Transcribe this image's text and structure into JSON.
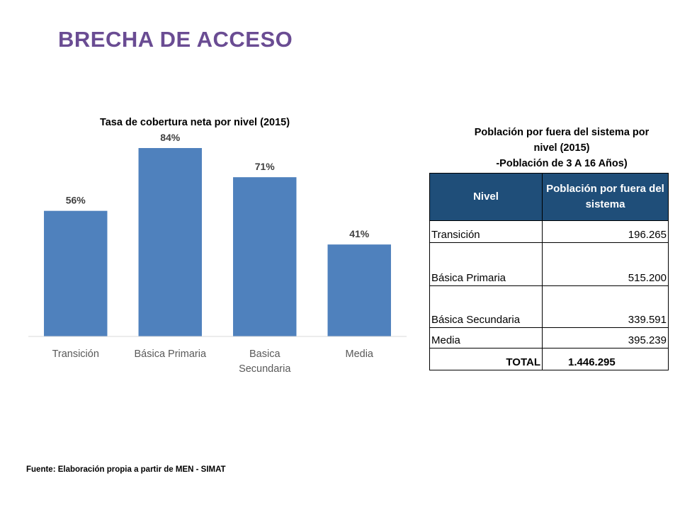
{
  "page": {
    "title": "BRECHA DE ACCESO"
  },
  "chart_data": {
    "type": "bar",
    "title": "Tasa de cobertura neta por nivel (2015)",
    "categories": [
      "Transición",
      "Básica Primaria",
      "Basica Secundaria",
      "Media"
    ],
    "category_lines": [
      [
        "Transición"
      ],
      [
        "Básica Primaria"
      ],
      [
        "Basica",
        "Secundaria"
      ],
      [
        "Media"
      ]
    ],
    "values": [
      56,
      84,
      71,
      41
    ],
    "value_labels": [
      "56%",
      "84%",
      "71%",
      "41%"
    ],
    "xlabel": "",
    "ylabel": "",
    "ylim": [
      0,
      90
    ],
    "grid": false,
    "legend": "none",
    "bar_color": "#4f81bd"
  },
  "table": {
    "caption_lines": [
      "Población por fuera del sistema por",
      "nivel (2015)",
      "-Población de 3 A 16 Años)"
    ],
    "headers": [
      "Nivel",
      "Población por fuera del sistema"
    ],
    "rows": [
      {
        "label": "Transición",
        "value": "196.265"
      },
      {
        "label": "Básica Primaria",
        "value": "515.200"
      },
      {
        "label": "Básica Secundaria",
        "value": "339.591"
      },
      {
        "label": "Media",
        "value": "395.239"
      }
    ],
    "total": {
      "label": "TOTAL",
      "value": "1.446.295"
    },
    "header_color": "#1f4e79"
  },
  "footer": {
    "source": "Fuente: Elaboración propia a partir de MEN - SIMAT"
  },
  "colors": {
    "title": "#6a4c93",
    "bar": "#4f81bd",
    "table_header": "#1f4e79"
  }
}
